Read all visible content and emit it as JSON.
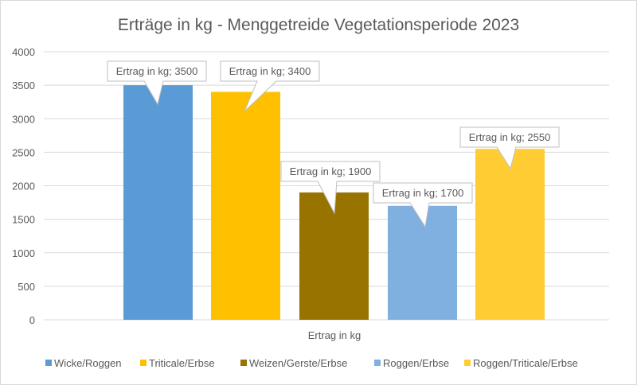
{
  "chart_data": {
    "type": "bar",
    "title": "Erträge in kg - Menggetreide Vegetationsperiode 2023",
    "categories": [
      "Ertrag in kg"
    ],
    "xlabel": "",
    "ylabel": "",
    "ylim": [
      0,
      4000
    ],
    "yticks": [
      "0",
      "500",
      "1000",
      "1500",
      "2000",
      "2500",
      "3000",
      "3500",
      "4000"
    ],
    "grid": true,
    "legend_position": "bottom",
    "series": [
      {
        "name": "Wicke/Roggen",
        "values": [
          3500
        ],
        "color": "#5B9BD5",
        "data_label": "Ertrag in kg; 3500"
      },
      {
        "name": "Triticale/Erbse",
        "values": [
          3400
        ],
        "color": "#FFC000",
        "data_label": "Ertrag in kg; 3400"
      },
      {
        "name": "Weizen/Gerste/Erbse",
        "values": [
          1900
        ],
        "color": "#997300",
        "data_label": "Ertrag in kg; 1900"
      },
      {
        "name": "Roggen/Erbse",
        "values": [
          1700
        ],
        "color": "#7FB0DF",
        "data_label": "Ertrag in kg; 1700"
      },
      {
        "name": "Roggen/Triticale/Erbse",
        "values": [
          2550
        ],
        "color": "#FFCD33",
        "data_label": "Ertrag in kg; 2550"
      }
    ]
  }
}
